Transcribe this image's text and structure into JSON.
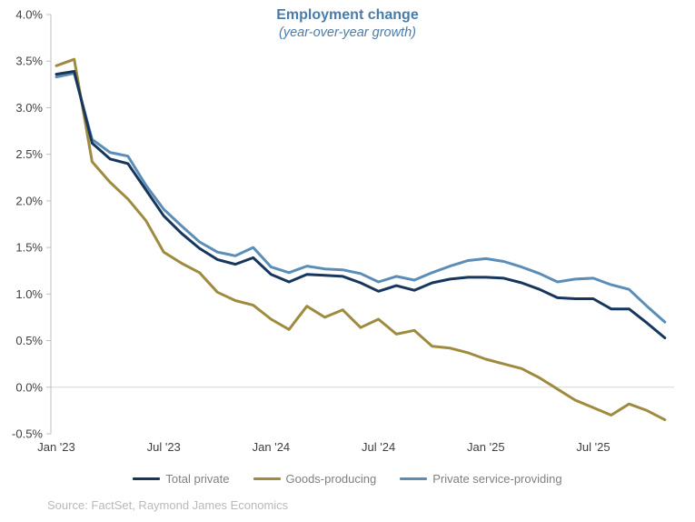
{
  "title": "Employment change",
  "subtitle": "(year-over-year growth)",
  "source": "Source: FactSet, Raymond James Economics",
  "colors": {
    "title_text": "#4b7ca9",
    "axis_text": "#404040",
    "axis_line": "#bfbfbf",
    "zero_gridline": "#d6d6d6",
    "legend_text": "#808080",
    "source_text": "#b9b9b9"
  },
  "chart_data": {
    "type": "line",
    "title": "Employment change",
    "subtitle": "(year-over-year growth)",
    "x": [
      "Jan '23",
      "Feb '23",
      "Mar '23",
      "Apr '23",
      "May '23",
      "Jun '23",
      "Jul '23",
      "Aug '23",
      "Sep '23",
      "Oct '23",
      "Nov '23",
      "Dec '23",
      "Jan '24",
      "Feb '24",
      "Mar '24",
      "Apr '24",
      "May '24",
      "Jun '24",
      "Jul '24",
      "Aug '24",
      "Sep '24",
      "Oct '24",
      "Nov '24",
      "Dec '24",
      "Jan '25",
      "Feb '25",
      "Mar '25",
      "Apr '25",
      "May '25",
      "Jun '25",
      "Jul '25",
      "Aug '25",
      "Sep '25",
      "Oct '25",
      "Nov '25"
    ],
    "x_tick_labels": [
      "Jan '23",
      "Jul '23",
      "Jan '24",
      "Jul '24",
      "Jan '25",
      "Jul '25"
    ],
    "x_tick_indices": [
      0,
      6,
      12,
      18,
      24,
      30
    ],
    "y_ticks": [
      4.0,
      3.5,
      3.0,
      2.5,
      2.0,
      1.5,
      1.0,
      0.5,
      0.0,
      -0.5
    ],
    "y_tick_suffix": "%",
    "ylim": [
      -0.5,
      4.0
    ],
    "grid": "single horizontal gridline at 0.0% only",
    "legend_position": "bottom",
    "series": [
      {
        "name": "Total private",
        "color": "#17365d",
        "values": [
          3.36,
          3.39,
          2.62,
          2.45,
          2.4,
          2.12,
          1.84,
          1.65,
          1.49,
          1.37,
          1.32,
          1.39,
          1.21,
          1.13,
          1.21,
          1.2,
          1.19,
          1.12,
          1.03,
          1.09,
          1.04,
          1.12,
          1.16,
          1.18,
          1.18,
          1.17,
          1.12,
          1.05,
          0.96,
          0.95,
          0.95,
          0.84,
          0.84,
          0.69,
          0.53
        ]
      },
      {
        "name": "Goods-producing",
        "color": "#9f8b40",
        "values": [
          3.45,
          3.52,
          2.42,
          2.2,
          2.02,
          1.79,
          1.45,
          1.33,
          1.23,
          1.02,
          0.93,
          0.88,
          0.73,
          0.62,
          0.87,
          0.75,
          0.83,
          0.64,
          0.73,
          0.57,
          0.61,
          0.44,
          0.42,
          0.37,
          0.3,
          0.25,
          0.2,
          0.1,
          -0.02,
          -0.14,
          -0.22,
          -0.3,
          -0.18,
          -0.25,
          -0.35
        ]
      },
      {
        "name": "Private service-providing",
        "color": "#5b8db6",
        "values": [
          3.33,
          3.37,
          2.66,
          2.52,
          2.48,
          2.17,
          1.91,
          1.73,
          1.56,
          1.45,
          1.41,
          1.5,
          1.29,
          1.23,
          1.3,
          1.27,
          1.26,
          1.22,
          1.13,
          1.19,
          1.15,
          1.23,
          1.3,
          1.36,
          1.38,
          1.35,
          1.29,
          1.22,
          1.13,
          1.16,
          1.17,
          1.1,
          1.05,
          0.87,
          0.7
        ]
      }
    ]
  }
}
